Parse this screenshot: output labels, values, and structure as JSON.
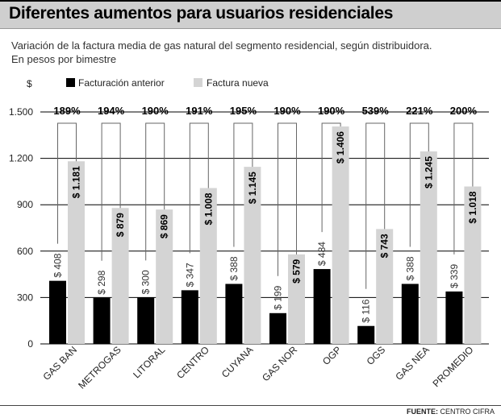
{
  "header": {
    "title": "Diferentes aumentos para usuarios residenciales",
    "subtitle_line1": "Variación de la factura media de gas natural del segmento residencial, según distribuidora.",
    "subtitle_line2": "En pesos por bimestre"
  },
  "footer": {
    "source_label": "FUENTE:",
    "source_value": "CENTRO CIFRA"
  },
  "colors": {
    "anterior": "#000000",
    "nueva": "#d4d4d4",
    "grid": "#000000",
    "bracket": "#666666"
  },
  "chart_data": {
    "type": "bar",
    "ylabel": "$",
    "ylim": [
      0,
      1500
    ],
    "yticks": [
      0,
      300,
      600,
      900,
      1200,
      1500
    ],
    "ytick_labels": [
      "0",
      "300",
      "600",
      "900",
      "1.200",
      "1.500"
    ],
    "grid": true,
    "legend_position": "top-left",
    "categories": [
      "GAS BAN",
      "METROGAS",
      "LITORAL",
      "CENTRO",
      "CUYANA",
      "GAS NOR",
      "OGP",
      "OGS",
      "GAS NEA",
      "PROMEDIO"
    ],
    "series": [
      {
        "name": "Facturación anterior",
        "values": [
          408,
          298,
          300,
          347,
          388,
          199,
          484,
          116,
          388,
          339
        ],
        "labels": [
          "$ 408",
          "$ 298",
          "$ 300",
          "$ 347",
          "$ 388",
          "$ 199",
          "$ 484",
          "$ 116",
          "$ 388",
          "$ 339"
        ]
      },
      {
        "name": "Factura nueva",
        "values": [
          1181,
          879,
          869,
          1008,
          1145,
          579,
          1406,
          743,
          1245,
          1018
        ],
        "labels": [
          "$ 1.181",
          "$ 879",
          "$ 869",
          "$ 1.008",
          "$ 1.145",
          "$ 579",
          "$ 1.406",
          "$ 743",
          "$ 1.245",
          "$ 1.018"
        ]
      }
    ],
    "annotations": [
      "189%",
      "194%",
      "190%",
      "191%",
      "195%",
      "190%",
      "190%",
      "539%",
      "221%",
      "200%"
    ]
  }
}
